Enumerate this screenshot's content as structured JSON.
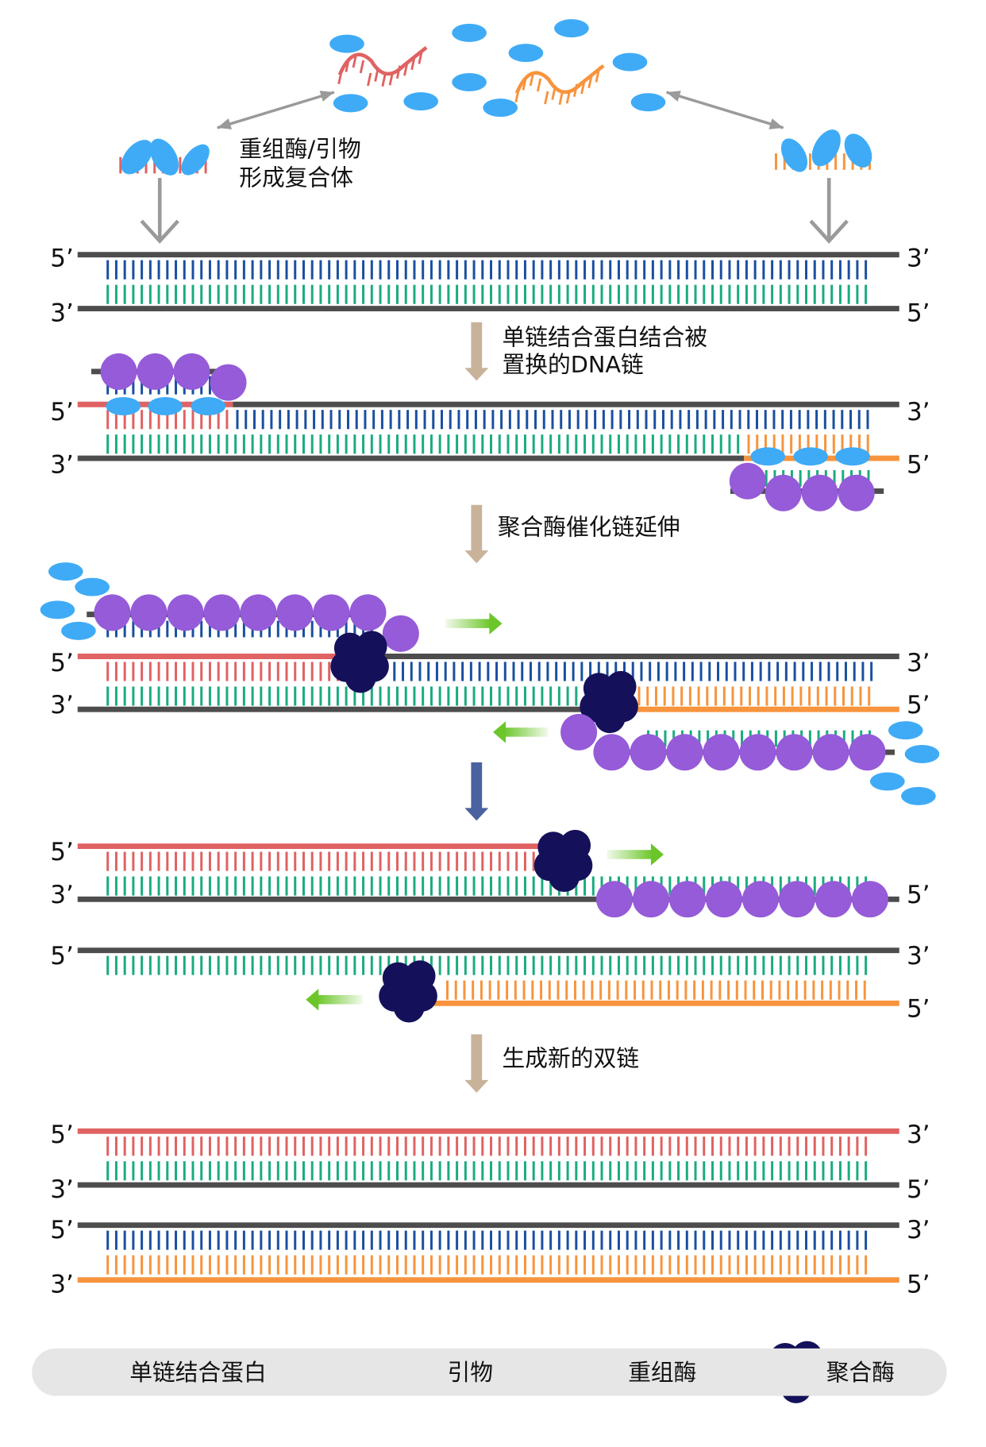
{
  "top_caption": [
    "重组酶/引物",
    "形成复合体"
  ],
  "step_captions": {
    "step1": [
      "单链结合蛋白结合被",
      "置换的DNA链"
    ],
    "step2": "聚合酶催化链延伸",
    "step4": "生成新的双链"
  },
  "strand_ends": {
    "five": "5’",
    "three": "3’"
  },
  "legend": {
    "ssb": "单链结合蛋白",
    "primer": "引物",
    "recombinase": "重组酶",
    "polymerase": "聚合酶"
  },
  "colors": {
    "backbone": "#4d4d4d",
    "template_top_bases": "#1a4fa0",
    "template_bottom_bases": "#1aab80",
    "primer_forward": "#e06262",
    "primer_reverse": "#f7943d",
    "recombinase": "#3fabf6",
    "ssb": "#955bd8",
    "polymerase": "#14115a",
    "step_arrow": "#c8b39a",
    "extension_arrow": "#6cc62a"
  }
}
